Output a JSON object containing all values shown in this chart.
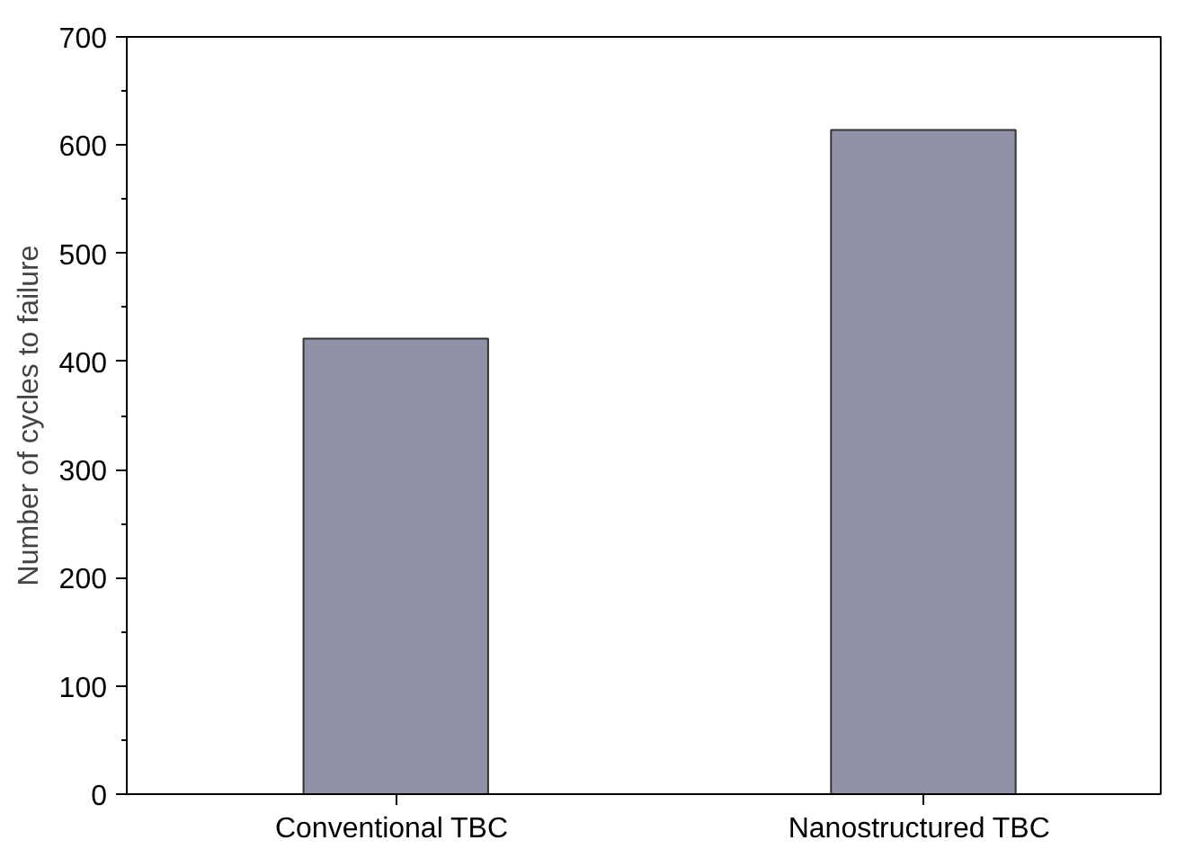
{
  "chart_data": {
    "type": "bar",
    "ylabel": "Number of cycles to failure",
    "categories": [
      "Conventional  TBC",
      "Nanostructured  TBC"
    ],
    "values": [
      421,
      614
    ],
    "color": "#9191a8",
    "ylim": [
      0,
      700
    ],
    "yticks": [
      0,
      100,
      200,
      300,
      400,
      500,
      600,
      700
    ],
    "grid": false
  }
}
